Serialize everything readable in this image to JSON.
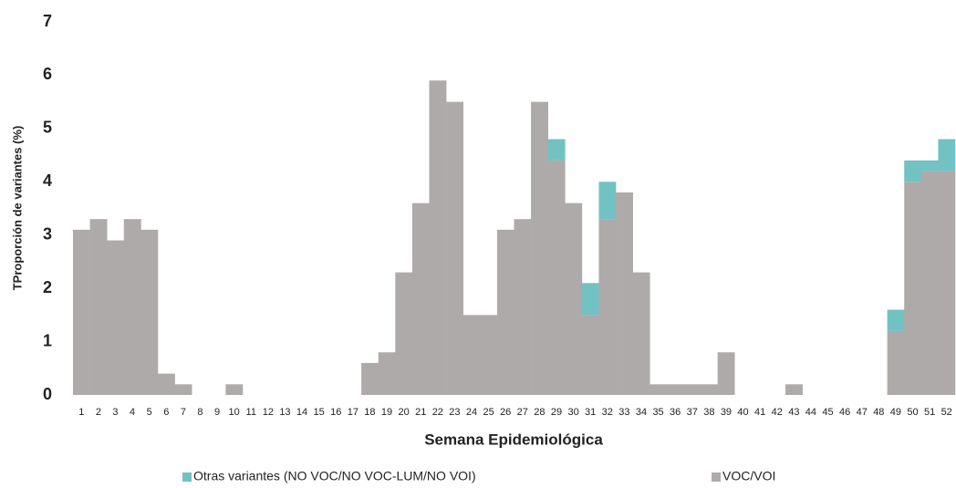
{
  "chart_data": {
    "type": "stacked_bar",
    "x_label": "Semana Epidemiológica",
    "y_label": "TProporción de variantes (%)",
    "categories": [
      "1",
      "2",
      "3",
      "4",
      "5",
      "6",
      "7",
      "8",
      "9",
      "10",
      "11",
      "12",
      "13",
      "14",
      "15",
      "16",
      "17",
      "18",
      "19",
      "20",
      "21",
      "22",
      "23",
      "24",
      "25",
      "26",
      "27",
      "28",
      "29",
      "30",
      "31",
      "32",
      "33",
      "34",
      "35",
      "36",
      "37",
      "38",
      "39",
      "40",
      "41",
      "42",
      "43",
      "44",
      "45",
      "46",
      "47",
      "48",
      "49",
      "50",
      "51",
      "52"
    ],
    "series": [
      {
        "name": "Otras variantes (NO VOC/NO VOC-LUM/NO VOI)",
        "color": "#72c2c3",
        "values": [
          0,
          0,
          0,
          0,
          0,
          0,
          0,
          0,
          0,
          0,
          0,
          0,
          0,
          0,
          0,
          0,
          0,
          0,
          0,
          0,
          0,
          0,
          0,
          0,
          0,
          0,
          0,
          0,
          0.4,
          0,
          0.6,
          0.7,
          0,
          0,
          0,
          0,
          0,
          0,
          0,
          0,
          0,
          0,
          0,
          0,
          0,
          0,
          0,
          0,
          0.4,
          0.4,
          0.2,
          0.6
        ]
      },
      {
        "name": "VOC/VOI",
        "color": "#aeaaaa",
        "values": [
          3.1,
          3.3,
          2.9,
          3.3,
          3.1,
          0.4,
          0.2,
          0,
          0,
          0.2,
          0,
          0,
          0,
          0,
          0,
          0,
          0,
          0.6,
          0.8,
          2.3,
          3.6,
          5.9,
          5.5,
          1.5,
          1.5,
          3.1,
          3.3,
          5.5,
          4.4,
          3.6,
          1.5,
          3.3,
          3.8,
          2.3,
          0.2,
          0.2,
          0.2,
          0.2,
          0.8,
          0,
          0,
          0,
          0.2,
          0,
          0,
          0,
          0,
          0,
          1.2,
          4.0,
          4.2,
          4.2
        ]
      }
    ],
    "ylim": [
      0,
      7
    ],
    "yticks": [
      0,
      1,
      2,
      3,
      4,
      5,
      6,
      7
    ],
    "grid": false
  }
}
